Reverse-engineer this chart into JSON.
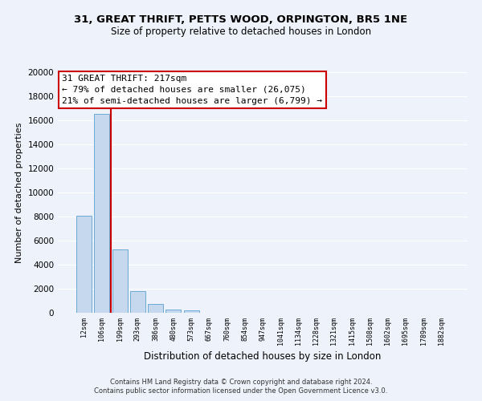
{
  "title_line1": "31, GREAT THRIFT, PETTS WOOD, ORPINGTON, BR5 1NE",
  "title_line2": "Size of property relative to detached houses in London",
  "xlabel": "Distribution of detached houses by size in London",
  "ylabel": "Number of detached properties",
  "bar_labels": [
    "12sqm",
    "106sqm",
    "199sqm",
    "293sqm",
    "386sqm",
    "480sqm",
    "573sqm",
    "667sqm",
    "760sqm",
    "854sqm",
    "947sqm",
    "1041sqm",
    "1134sqm",
    "1228sqm",
    "1321sqm",
    "1415sqm",
    "1508sqm",
    "1602sqm",
    "1695sqm",
    "1789sqm",
    "1882sqm"
  ],
  "bar_values": [
    8100,
    16500,
    5300,
    1800,
    750,
    300,
    220,
    0,
    0,
    0,
    0,
    0,
    0,
    0,
    0,
    0,
    0,
    0,
    0,
    0,
    0
  ],
  "bar_color": "#c5d8ee",
  "bar_edge_color": "#6aaad4",
  "annotation_title": "31 GREAT THRIFT: 217sqm",
  "annotation_line1": "← 79% of detached houses are smaller (26,075)",
  "annotation_line2": "21% of semi-detached houses are larger (6,799) →",
  "ylim": [
    0,
    20000
  ],
  "yticks": [
    0,
    2000,
    4000,
    6000,
    8000,
    10000,
    12000,
    14000,
    16000,
    18000,
    20000
  ],
  "footnote1": "Contains HM Land Registry data © Crown copyright and database right 2024.",
  "footnote2": "Contains public sector information licensed under the Open Government Licence v3.0.",
  "background_color": "#eef2fa",
  "grid_color": "#ffffff",
  "annotation_box_color": "#ffffff",
  "annotation_box_edge": "#cc0000",
  "property_line_color": "#cc0000",
  "property_line_xindex": 1.5
}
